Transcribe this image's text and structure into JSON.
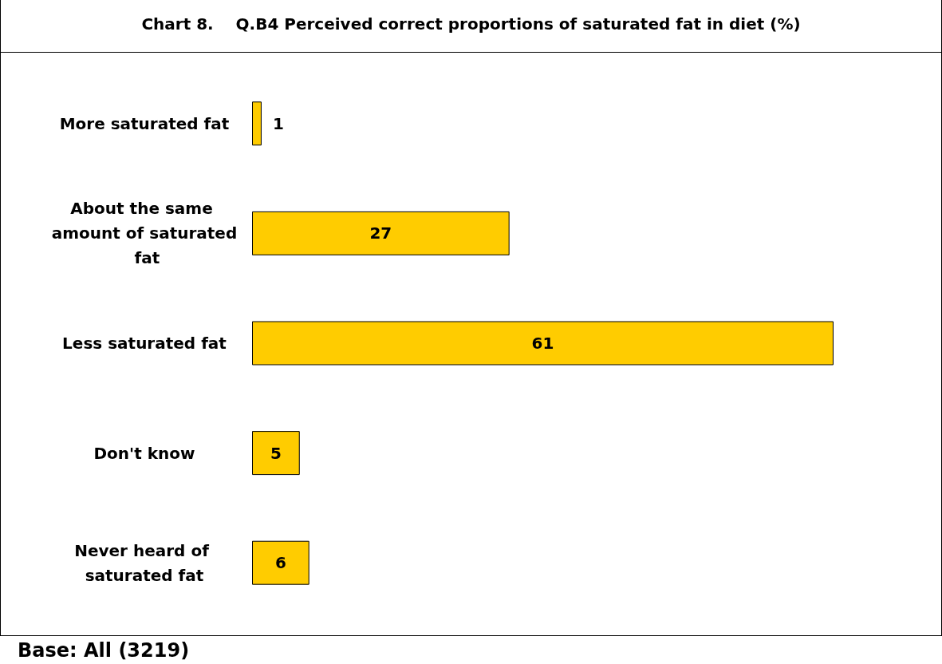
{
  "chart_data": {
    "type": "bar",
    "orientation": "horizontal",
    "tick_labels": false,
    "title": "Chart 8.    Q.B4 Perceived correct proportions of saturated fat in diet (%)",
    "categories": [
      "More saturated fat",
      "About the same amount of saturated fat",
      "Less saturated fat",
      "Don't know",
      "Never heard of saturated fat"
    ],
    "values": [
      1,
      27,
      61,
      5,
      6
    ],
    "color": "#ffcc00",
    "data_labels": true,
    "annotations": [
      "Base: All (3219)"
    ]
  }
}
